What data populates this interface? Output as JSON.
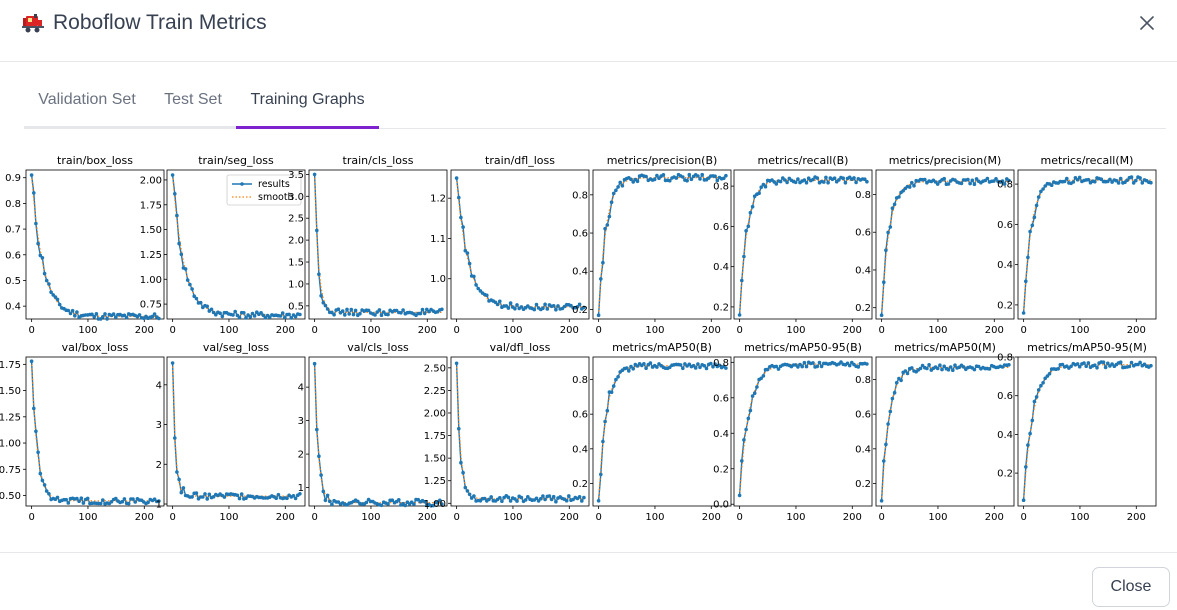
{
  "modal": {
    "title": "Roboflow Train Metrics",
    "close_label": "Close"
  },
  "tabs": [
    {
      "label": "Validation Set",
      "active": false
    },
    {
      "label": "Test Set",
      "active": false
    },
    {
      "label": "Training Graphs",
      "active": true
    }
  ],
  "colors": {
    "accent": "#7e22ce",
    "results": "#1f77b4",
    "smooth": "#ff7f0e"
  },
  "chart_data": [
    {
      "type": "line",
      "title": "train/box_loss",
      "xlim": [
        -10,
        235
      ],
      "ylim": [
        0.35,
        0.93
      ],
      "yticks": [
        0.4,
        0.5,
        0.6,
        0.7,
        0.8,
        0.9
      ],
      "ytick_labels": [
        "0.4",
        "0.5",
        "0.6",
        "0.7",
        "0.8",
        "0.9"
      ],
      "xticks": [
        0,
        100,
        200
      ],
      "start": 0.91,
      "end": 0.36,
      "kind": "decay",
      "k": 12
    },
    {
      "type": "line",
      "title": "train/seg_loss",
      "xlim": [
        -10,
        235
      ],
      "ylim": [
        0.6,
        2.1
      ],
      "yticks": [
        0.75,
        1.0,
        1.25,
        1.5,
        1.75,
        2.0
      ],
      "ytick_labels": [
        "0.75",
        "1.00",
        "1.25",
        "1.50",
        "1.75",
        "2.00"
      ],
      "xticks": [
        0,
        100,
        200
      ],
      "start": 2.05,
      "end": 0.64,
      "kind": "decay",
      "k": 12,
      "legend": {
        "results": "results",
        "smooth": "smooth",
        "position": "top-right"
      }
    },
    {
      "type": "line",
      "title": "train/cls_loss",
      "xlim": [
        -10,
        235
      ],
      "ylim": [
        0.2,
        3.6
      ],
      "yticks": [
        0.5,
        1.0,
        1.5,
        2.0,
        2.5,
        3.0,
        3.5
      ],
      "ytick_labels": [
        "0.5",
        "1.0",
        "1.5",
        "2.0",
        "2.5",
        "3.0",
        "3.5"
      ],
      "xticks": [
        0,
        100,
        200
      ],
      "start": 3.5,
      "end": 0.35,
      "kind": "decay",
      "k": 4
    },
    {
      "type": "line",
      "title": "train/dfl_loss",
      "xlim": [
        -10,
        235
      ],
      "ylim": [
        0.9,
        1.27
      ],
      "yticks": [
        1.0,
        1.1,
        1.2
      ],
      "ytick_labels": [
        "1.0",
        "1.1",
        "1.2"
      ],
      "xticks": [
        0,
        100,
        200
      ],
      "start": 1.25,
      "end": 0.93,
      "kind": "decay",
      "k": 12
    },
    {
      "type": "line",
      "title": "metrics/precision(B)",
      "xlim": [
        -10,
        235
      ],
      "ylim": [
        0.15,
        0.93
      ],
      "yticks": [
        0.2,
        0.4,
        0.6,
        0.8
      ],
      "ytick_labels": [
        "0.2",
        "0.4",
        "0.6",
        "0.8"
      ],
      "xticks": [
        0,
        100,
        200
      ],
      "start": 0.17,
      "end": 0.89,
      "kind": "grow",
      "k": 8
    },
    {
      "type": "line",
      "title": "metrics/recall(B)",
      "xlim": [
        -10,
        235
      ],
      "ylim": [
        0.14,
        0.88
      ],
      "yticks": [
        0.2,
        0.4,
        0.6,
        0.8
      ],
      "ytick_labels": [
        "0.2",
        "0.4",
        "0.6",
        "0.8"
      ],
      "xticks": [
        0,
        100,
        200
      ],
      "start": 0.16,
      "end": 0.83,
      "kind": "grow",
      "k": 8
    },
    {
      "type": "line",
      "title": "metrics/precision(M)",
      "xlim": [
        -10,
        235
      ],
      "ylim": [
        0.14,
        0.93
      ],
      "yticks": [
        0.2,
        0.4,
        0.6,
        0.8
      ],
      "ytick_labels": [
        "0.2",
        "0.4",
        "0.6",
        "0.8"
      ],
      "xticks": [
        0,
        100,
        200
      ],
      "start": 0.16,
      "end": 0.87,
      "kind": "grow",
      "k": 8
    },
    {
      "type": "line",
      "title": "metrics/recall(M)",
      "xlim": [
        -10,
        235
      ],
      "ylim": [
        0.13,
        0.87
      ],
      "yticks": [
        0.2,
        0.4,
        0.6,
        0.8
      ],
      "ytick_labels": [
        "0.2",
        "0.4",
        "0.6",
        "0.8"
      ],
      "xticks": [
        0,
        100,
        200
      ],
      "start": 0.16,
      "end": 0.82,
      "kind": "grow",
      "k": 8
    },
    {
      "type": "line",
      "title": "val/box_loss",
      "xlim": [
        -10,
        235
      ],
      "ylim": [
        0.4,
        1.82
      ],
      "yticks": [
        0.5,
        0.75,
        1.0,
        1.25,
        1.5,
        1.75
      ],
      "ytick_labels": [
        "0.50",
        "0.75",
        "1.00",
        "1.25",
        "1.50",
        "1.75"
      ],
      "xticks": [
        0,
        100,
        200
      ],
      "start": 1.78,
      "end": 0.45,
      "kind": "decay",
      "k": 6
    },
    {
      "type": "line",
      "title": "val/seg_loss",
      "xlim": [
        -10,
        235
      ],
      "ylim": [
        0.95,
        4.7
      ],
      "yticks": [
        1,
        2,
        3,
        4
      ],
      "ytick_labels": [
        "1",
        "2",
        "3",
        "4"
      ],
      "xticks": [
        0,
        100,
        200
      ],
      "start": 4.55,
      "end": 1.2,
      "kind": "decay",
      "k": 3
    },
    {
      "type": "line",
      "title": "val/cls_loss",
      "xlim": [
        -10,
        235
      ],
      "ylim": [
        0.45,
        4.9
      ],
      "yticks": [
        1,
        2,
        3,
        4
      ],
      "ytick_labels": [
        "1",
        "2",
        "3",
        "4"
      ],
      "xticks": [
        0,
        100,
        200
      ],
      "start": 4.7,
      "end": 0.55,
      "kind": "decay",
      "k": 4
    },
    {
      "type": "line",
      "title": "val/dfl_loss",
      "xlim": [
        -10,
        235
      ],
      "ylim": [
        0.97,
        2.62
      ],
      "yticks": [
        1.0,
        1.25,
        1.5,
        1.75,
        2.0,
        2.25,
        2.5
      ],
      "ytick_labels": [
        "1.00",
        "1.25",
        "1.50",
        "1.75",
        "2.00",
        "2.25",
        "2.50"
      ],
      "xticks": [
        0,
        100,
        200
      ],
      "start": 2.55,
      "end": 1.05,
      "kind": "decay",
      "k": 4
    },
    {
      "type": "line",
      "title": "metrics/mAP50(B)",
      "xlim": [
        -10,
        235
      ],
      "ylim": [
        0.07,
        0.93
      ],
      "yticks": [
        0.2,
        0.4,
        0.6,
        0.8
      ],
      "ytick_labels": [
        "0.2",
        "0.4",
        "0.6",
        "0.8"
      ],
      "xticks": [
        0,
        100,
        200
      ],
      "start": 0.1,
      "end": 0.88,
      "kind": "grow",
      "k": 8
    },
    {
      "type": "line",
      "title": "metrics/mAP50-95(B)",
      "xlim": [
        -10,
        235
      ],
      "ylim": [
        -0.01,
        0.83
      ],
      "yticks": [
        0.0,
        0.2,
        0.4,
        0.6,
        0.8
      ],
      "ytick_labels": [
        "0.0",
        "0.2",
        "0.4",
        "0.6",
        "0.8"
      ],
      "xticks": [
        0,
        100,
        200
      ],
      "start": 0.05,
      "end": 0.79,
      "kind": "grow",
      "k": 10
    },
    {
      "type": "line",
      "title": "metrics/mAP50(M)",
      "xlim": [
        -10,
        235
      ],
      "ylim": [
        0.07,
        0.93
      ],
      "yticks": [
        0.2,
        0.4,
        0.6,
        0.8
      ],
      "ytick_labels": [
        "0.2",
        "0.4",
        "0.6",
        "0.8"
      ],
      "xticks": [
        0,
        100,
        200
      ],
      "start": 0.1,
      "end": 0.87,
      "kind": "grow",
      "k": 8
    },
    {
      "type": "line",
      "title": "metrics/mAP50-95(M)",
      "xlim": [
        -10,
        235
      ],
      "ylim": [
        0.03,
        0.8
      ],
      "yticks": [
        0.2,
        0.4,
        0.6,
        0.8
      ],
      "ytick_labels": [
        "0.2",
        "0.4",
        "0.6",
        "0.8"
      ],
      "xticks": [
        0,
        100,
        200
      ],
      "start": 0.06,
      "end": 0.76,
      "kind": "grow",
      "k": 10
    }
  ]
}
